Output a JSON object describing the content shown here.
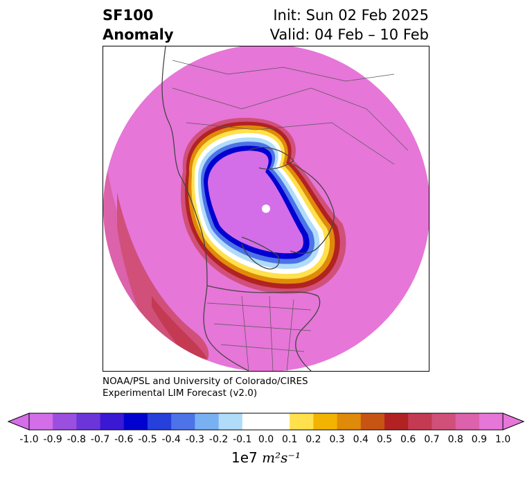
{
  "title": {
    "line1": "SF100",
    "line2": "Anomaly",
    "init": "Init: Sun 02 Feb 2025",
    "valid": "Valid: 04 Feb – 10 Feb"
  },
  "credit": {
    "line1": "NOAA/PSL and University of Colorado/CIRES",
    "line2": "Experimental LIM Forecast (v2.0)"
  },
  "colorbar": {
    "ticks": [
      "-1.0",
      "-0.9",
      "-0.8",
      "-0.7",
      "-0.6",
      "-0.5",
      "-0.4",
      "-0.3",
      "-0.2",
      "-0.1",
      "0.0",
      "0.1",
      "0.2",
      "0.3",
      "0.4",
      "0.5",
      "0.6",
      "0.7",
      "0.8",
      "0.9",
      "1.0"
    ],
    "colors": [
      "#d36ee8",
      "#9b4fe0",
      "#6c35d9",
      "#3b18d4",
      "#0000d0",
      "#2540db",
      "#4d73e8",
      "#78b0f2",
      "#b0dcfa",
      "#ffffff",
      "#ffffff",
      "#ffe14d",
      "#f2b400",
      "#e08a0a",
      "#c85414",
      "#b22222",
      "#c43a52",
      "#d0507a",
      "#db62ab",
      "#e676d8"
    ],
    "label_prefix": "1e7",
    "label_unit": "m²s⁻¹"
  },
  "map": {
    "projection": "north-polar-stereographic",
    "field_colors": {
      "background": "#e676d8",
      "negative_core": "#d36ee8",
      "ring_blue_dark": "#0000d0",
      "ring_blue_mid": "#4d73e8",
      "ring_blue_light": "#b0dcfa",
      "ring_yellow": "#ffe14d",
      "ring_orange": "#e08a0a",
      "ring_red": "#b22222",
      "ring_rose": "#d0507a"
    }
  }
}
